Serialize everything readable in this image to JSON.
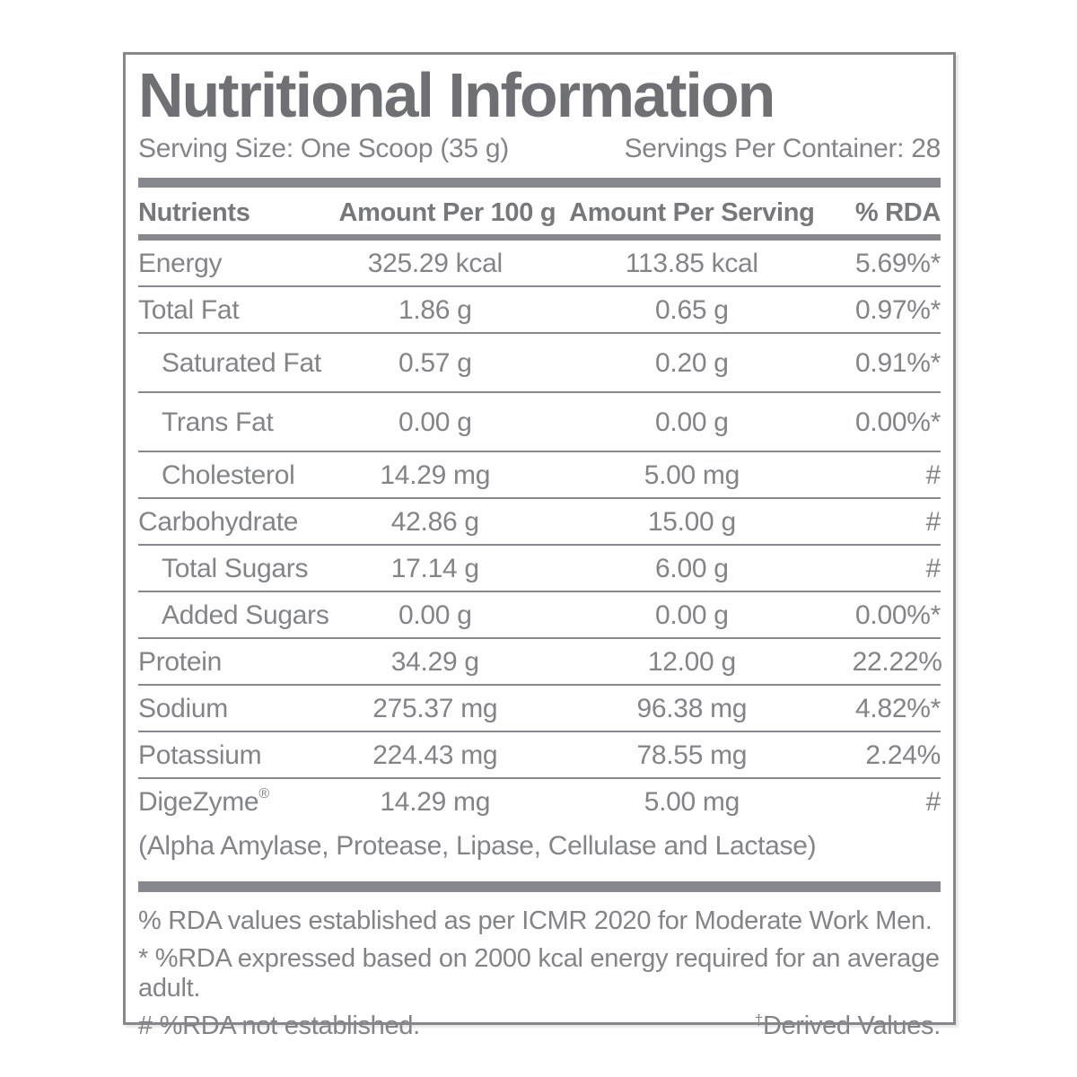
{
  "label": {
    "title": "Nutritional Information",
    "serving_size": "Serving Size: One Scoop (35 g)",
    "servings_per_container": "Servings Per Container: 28"
  },
  "table": {
    "headers": {
      "nutrients": "Nutrients",
      "per_100g": "Amount Per 100 g",
      "per_serving": "Amount Per Serving",
      "rda": "% RDA"
    },
    "rows": [
      {
        "nutrient": "Energy",
        "per_100g": "325.29 kcal",
        "per_serving": "113.85 kcal",
        "rda": "5.69%*"
      },
      {
        "nutrient": "Total Fat",
        "per_100g": "1.86 g",
        "per_serving": "0.65 g",
        "rda": "0.97%*"
      },
      {
        "nutrient": "Saturated Fat",
        "per_100g": "0.57 g",
        "per_serving": "0.20 g",
        "rda": "0.91%*"
      },
      {
        "nutrient": "Trans Fat",
        "per_100g": "0.00 g",
        "per_serving": "0.00 g",
        "rda": "0.00%*"
      },
      {
        "nutrient": "Cholesterol",
        "per_100g": "14.29 mg",
        "per_serving": "5.00 mg",
        "rda": "#"
      },
      {
        "nutrient": "Carbohydrate",
        "per_100g": "42.86 g",
        "per_serving": "15.00 g",
        "rda": "#"
      },
      {
        "nutrient": "Total Sugars",
        "per_100g": "17.14 g",
        "per_serving": "6.00 g",
        "rda": "#"
      },
      {
        "nutrient": "Added Sugars",
        "per_100g": "0.00 g",
        "per_serving": "0.00 g",
        "rda": "0.00%*"
      },
      {
        "nutrient": "Protein",
        "per_100g": "34.29 g",
        "per_serving": "12.00 g",
        "rda": "22.22%"
      },
      {
        "nutrient": "Sodium",
        "per_100g": "275.37 mg",
        "per_serving": "96.38 mg",
        "rda": "4.82%*"
      },
      {
        "nutrient": "Potassium",
        "per_100g": "224.43 mg",
        "per_serving": "78.55 mg",
        "rda": "2.24%"
      },
      {
        "nutrient": "DigeZyme",
        "trademark": "®",
        "per_100g": "14.29 mg",
        "per_serving": "5.00 mg",
        "rda": "#"
      }
    ],
    "enzymes_note": "(Alpha Amylase, Protease, Lipase, Cellulase and Lactase)"
  },
  "footnotes": {
    "rda_basis": "% RDA values established as per ICMR 2020 for Moderate Work Men.",
    "asterisk_note": "* %RDA expressed based on 2000 kcal energy required for an average adult.",
    "hash_note": "# %RDA not established.",
    "dagger_symbol": "†",
    "dagger_text": "Derived Values."
  },
  "colors": {
    "title-gray": "#6e7073",
    "text-gray": "#828487",
    "line-gray": "#87888b",
    "bg": "#ffffff"
  }
}
